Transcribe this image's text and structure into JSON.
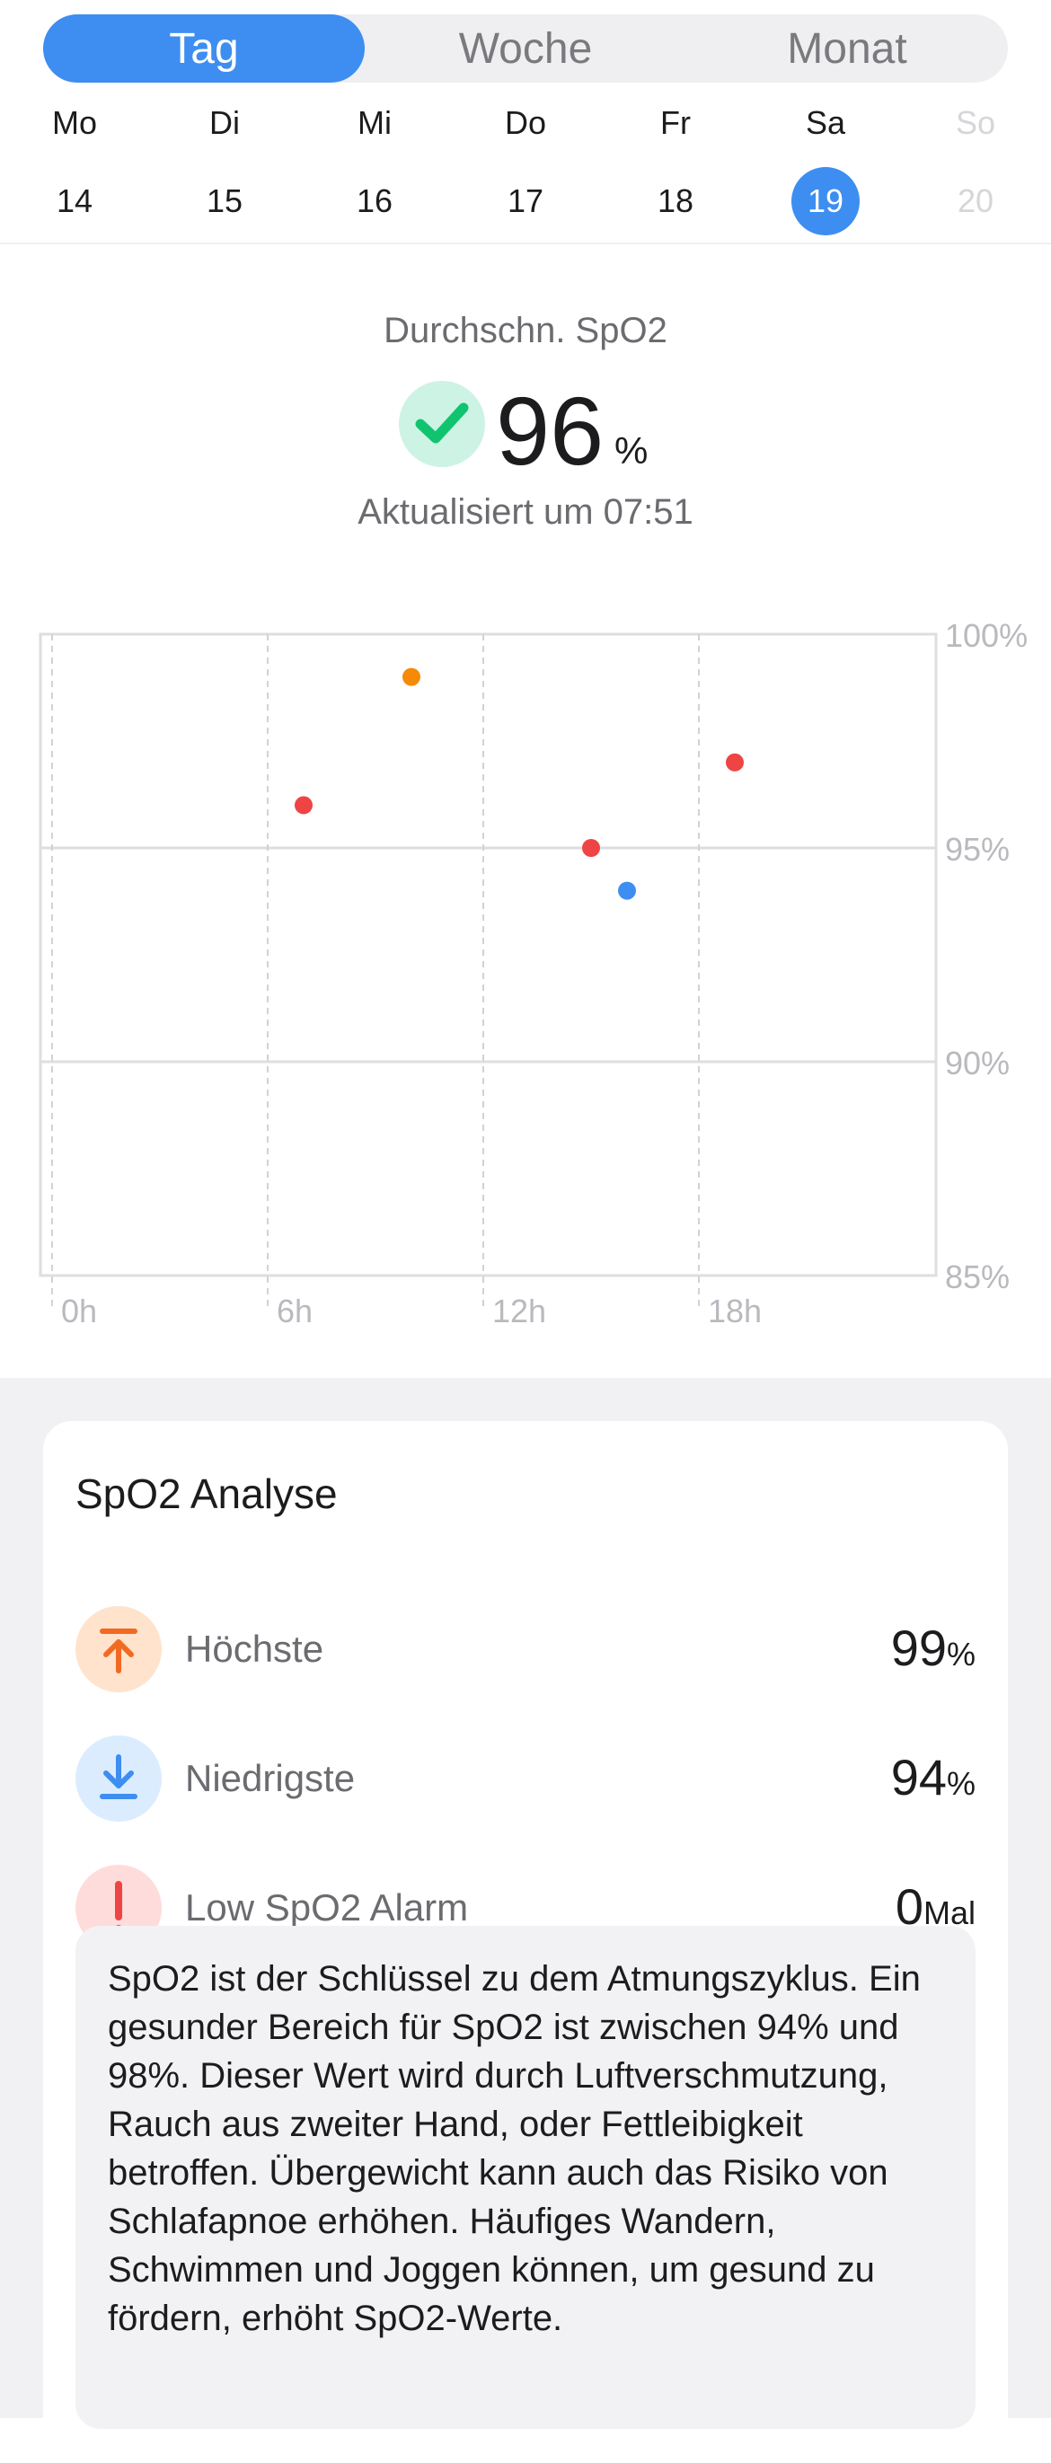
{
  "tabs": [
    {
      "label": "Tag",
      "active": true
    },
    {
      "label": "Woche",
      "active": false
    },
    {
      "label": "Monat",
      "active": false
    }
  ],
  "week": [
    {
      "name": "Mo",
      "num": "14",
      "selected": false,
      "disabled": false
    },
    {
      "name": "Di",
      "num": "15",
      "selected": false,
      "disabled": false
    },
    {
      "name": "Mi",
      "num": "16",
      "selected": false,
      "disabled": false
    },
    {
      "name": "Do",
      "num": "17",
      "selected": false,
      "disabled": false
    },
    {
      "name": "Fr",
      "num": "18",
      "selected": false,
      "disabled": false
    },
    {
      "name": "Sa",
      "num": "19",
      "selected": true,
      "disabled": false
    },
    {
      "name": "So",
      "num": "20",
      "selected": false,
      "disabled": true
    }
  ],
  "summary": {
    "label": "Durchschn. SpO2",
    "value": "96",
    "unit": "%",
    "updated": "Aktualisiert um 07:51"
  },
  "chart_data": {
    "type": "scatter",
    "title": "",
    "xlabel": "",
    "ylabel": "",
    "xlim": [
      0,
      24
    ],
    "ylim": [
      85,
      100
    ],
    "x_ticks": [
      {
        "value": 0,
        "label": "0h"
      },
      {
        "value": 6,
        "label": "6h"
      },
      {
        "value": 12,
        "label": "12h"
      },
      {
        "value": 18,
        "label": "18h"
      }
    ],
    "y_ticks": [
      {
        "value": 100,
        "label": "100%"
      },
      {
        "value": 95,
        "label": "95%"
      },
      {
        "value": 90,
        "label": "90%"
      },
      {
        "value": 85,
        "label": "85%"
      }
    ],
    "grid": true,
    "points": [
      {
        "x": 7.0,
        "y": 96,
        "color": "#ef4444"
      },
      {
        "x": 10.0,
        "y": 99,
        "color": "#f58a07"
      },
      {
        "x": 15.0,
        "y": 95,
        "color": "#ef4444"
      },
      {
        "x": 16.0,
        "y": 94,
        "color": "#3d8ef0"
      },
      {
        "x": 19.0,
        "y": 97,
        "color": "#ef4444"
      }
    ]
  },
  "analysis": {
    "title": "SpO2 Analyse",
    "items": [
      {
        "label": "Höchste",
        "value": "99",
        "unit": "%",
        "icon": "arrow-up-bar-icon",
        "bg": "#ffe3cc",
        "fg": "#f26a22"
      },
      {
        "label": "Niedrigste",
        "value": "94",
        "unit": "%",
        "icon": "arrow-down-bar-icon",
        "bg": "#dcecff",
        "fg": "#3d8ef0"
      },
      {
        "label": "Low SpO2 Alarm",
        "value": "0",
        "unit": "Mal",
        "icon": "exclamation-icon",
        "bg": "#ffdcdc",
        "fg": "#ef4444"
      }
    ],
    "info": "SpO2 ist der Schlüssel zu dem Atmungszyklus. Ein gesunder Bereich für SpO2 ist zwischen 94% und 98%. Dieser Wert wird durch Luftverschmutzung, Rauch aus zweiter Hand, oder Fettleibigkeit betroffen. Übergewicht kann auch das Risiko von Schlafapnoe erhöhen. Häufiges Wandern, Schwimmen und Joggen können, um gesund zu fördern, erhöht SpO2-Werte."
  }
}
